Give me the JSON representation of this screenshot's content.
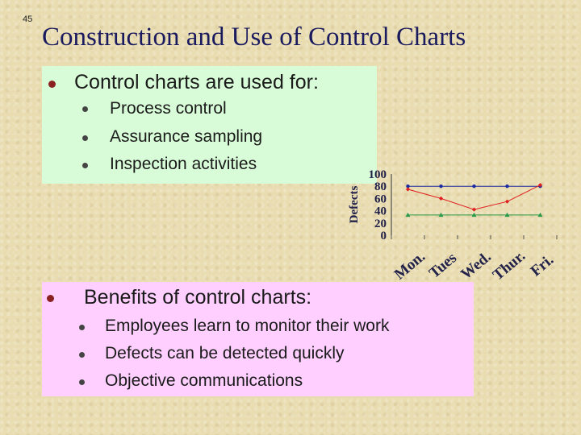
{
  "slide": {
    "number": "45",
    "title": "Construction and Use of Control Charts"
  },
  "uses": {
    "heading": "Control charts are used for:",
    "items": [
      "Process control",
      "Assurance sampling",
      "Inspection activities"
    ]
  },
  "benefits": {
    "heading": "Benefits of control charts:",
    "items": [
      "Employees learn to monitor their work",
      "Defects can be detected quickly",
      "Objective communications"
    ]
  },
  "colors": {
    "uses_box": "#d8fcd8",
    "benefits_box": "#ffd0ff",
    "title": "#1a1a5e",
    "series_upper": "#1a2aa0",
    "series_defects": "#e02020",
    "series_lower": "#2a9a4a"
  },
  "chart_data": {
    "type": "line",
    "title": "",
    "xlabel": "",
    "ylabel": "Defects",
    "ylim": [
      0,
      100
    ],
    "y_ticks": [
      "0",
      "20",
      "40",
      "60",
      "80",
      "100"
    ],
    "categories": [
      "Mon.",
      "Tues",
      "Wed.",
      "Thur.",
      "Fri."
    ],
    "series": [
      {
        "values": [
          80,
          80,
          80,
          80,
          80
        ],
        "color": "#1a2aa0",
        "marker": "circle"
      },
      {
        "values": [
          75,
          60,
          42,
          55,
          82
        ],
        "color": "#e02020",
        "marker": "diamond"
      },
      {
        "values": [
          33,
          33,
          33,
          33,
          33
        ],
        "color": "#2a9a4a",
        "marker": "triangle"
      }
    ],
    "grid": false,
    "legend": "none"
  }
}
